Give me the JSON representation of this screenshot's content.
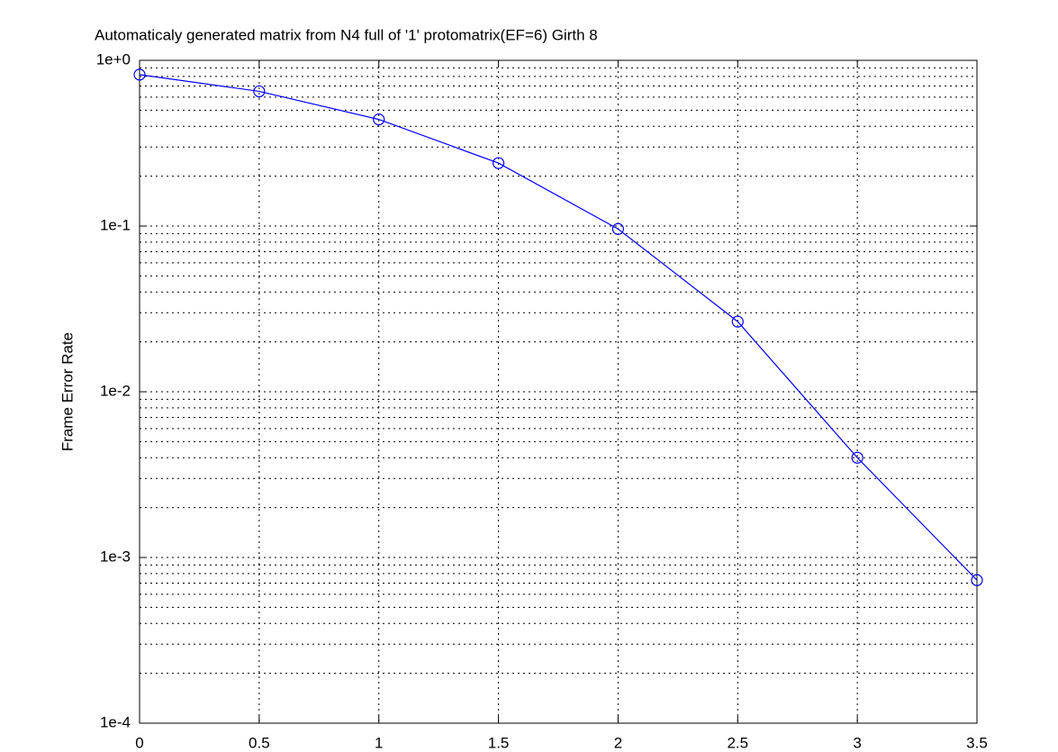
{
  "chart_data": {
    "type": "line",
    "title": "Automaticaly generated matrix from N4 full of '1' protomatrix(EF=6) Girth 8",
    "y_label": "Frame Error Rate",
    "x": [
      0,
      0.5,
      1,
      1.5,
      2,
      2.5,
      3,
      3.5
    ],
    "series": [
      {
        "color": "#0000ff",
        "marker": "circle",
        "values": [
          0.82,
          0.65,
          0.44,
          0.24,
          0.096,
          0.0265,
          0.004,
          0.00073
        ]
      }
    ],
    "xlim": [
      0,
      3.5
    ],
    "xticks": [
      0,
      0.5,
      1,
      1.5,
      2,
      2.5,
      3,
      3.5
    ],
    "ylim": [
      0.0001,
      1
    ],
    "y_scale": "log",
    "yticks": [
      {
        "value": 0.0001,
        "label": "1e-4"
      },
      {
        "value": 0.001,
        "label": "1e-3"
      },
      {
        "value": 0.01,
        "label": "1e-2"
      },
      {
        "value": 0.1,
        "label": "1e-1"
      },
      {
        "value": 1,
        "label": "1e+0"
      }
    ],
    "grid": true,
    "minor_grid": true
  }
}
